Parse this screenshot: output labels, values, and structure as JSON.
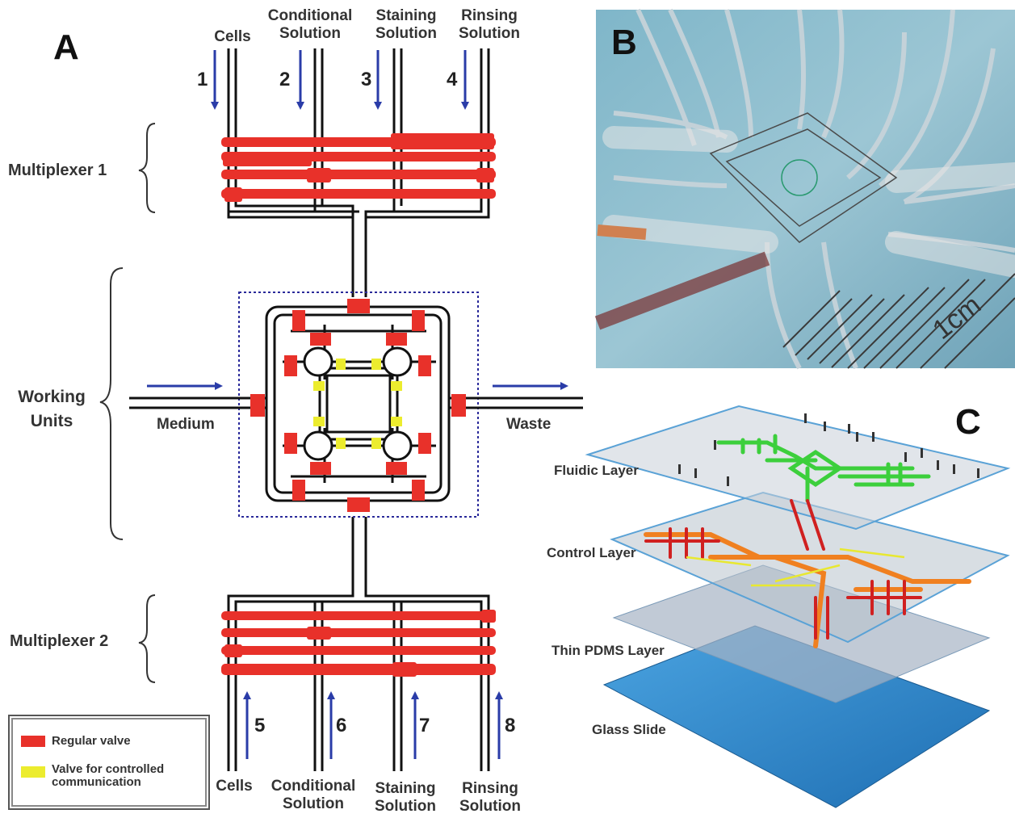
{
  "panel_labels": {
    "a": "A",
    "b": "B",
    "c": "C"
  },
  "inlets_top": [
    {
      "number": "1",
      "label": "Cells"
    },
    {
      "number": "2",
      "label": "Conditional Solution"
    },
    {
      "number": "3",
      "label": "Staining Solution"
    },
    {
      "number": "4",
      "label": "Rinsing Solution"
    }
  ],
  "inlets_bottom": [
    {
      "number": "5",
      "label": "Cells"
    },
    {
      "number": "6",
      "label": "Conditional Solution"
    },
    {
      "number": "7",
      "label": "Staining Solution"
    },
    {
      "number": "8",
      "label": "Rinsing Solution"
    }
  ],
  "left_labels": {
    "multiplexer1": "Multiplexer 1",
    "working_units": "Working Units",
    "multiplexer2": "Multiplexer 2"
  },
  "side_ports": {
    "medium": "Medium",
    "waste": "Waste"
  },
  "legend": {
    "regular_valve": "Regular valve",
    "controlled_valve": "Valve for controlled communication"
  },
  "photo": {
    "scale_label": "1cm"
  },
  "layers": [
    "Fluidic Layer",
    "Control Layer",
    "Thin PDMS Layer",
    "Glass Slide"
  ],
  "colors": {
    "regular_valve": "#e8312a",
    "controlled_valve": "#ecec2e",
    "flow_arrow": "#2a3ca8",
    "channel": "#111111",
    "boundary": "#2a2a9a",
    "fluidic_channel": "#3ccf3c",
    "control_channel_orange": "#f08020",
    "control_channel_red": "#d02020",
    "control_channel_yellow": "#e8e830",
    "glass": "#2f86c9"
  }
}
